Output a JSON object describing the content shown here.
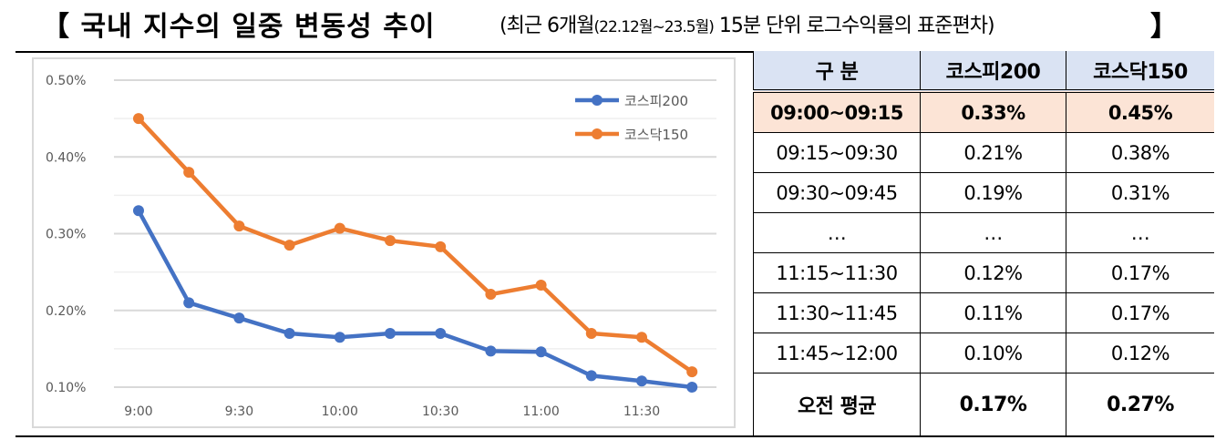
{
  "title": {
    "main": "【 국내 지수의 일중 변동성 추이",
    "sub_open": "(최근 6개월",
    "sub_period": "(22.12월~23.5월)",
    "sub_rest": " 15분 단위 로그수익률의 표준편차)",
    "close": "】"
  },
  "chart_data": {
    "type": "line",
    "title": "",
    "xlabel": "",
    "ylabel": "",
    "x": [
      "9:00",
      "9:15",
      "9:30",
      "9:45",
      "10:00",
      "10:15",
      "10:30",
      "10:45",
      "11:00",
      "11:15",
      "11:30",
      "11:45"
    ],
    "x_tick_labels": [
      "9:00",
      "9:30",
      "10:00",
      "10:30",
      "11:00",
      "11:30"
    ],
    "y_tick_labels": [
      "0.50%",
      "0.40%",
      "0.30%",
      "0.20%",
      "0.10%"
    ],
    "ylim": [
      0.1,
      0.5
    ],
    "y_unit": "%",
    "grid": {
      "major": 0.1,
      "minor": 0.05,
      "horizontal": true
    },
    "legend_position": "upper-right",
    "series": [
      {
        "name": "코스피200",
        "color": "#4472c4",
        "values": [
          0.33,
          0.21,
          0.19,
          0.17,
          0.165,
          0.17,
          0.17,
          0.147,
          0.146,
          0.115,
          0.108,
          0.1
        ]
      },
      {
        "name": "코스닥150",
        "color": "#ed7d31",
        "values": [
          0.45,
          0.38,
          0.31,
          0.285,
          0.307,
          0.291,
          0.283,
          0.221,
          0.233,
          0.17,
          0.165,
          0.12
        ]
      }
    ]
  },
  "table": {
    "headers": [
      "구  분",
      "코스피200",
      "코스닥150"
    ],
    "rows": [
      {
        "period": "09:00~09:15",
        "kospi200": "0.33%",
        "kosdaq150": "0.45%",
        "highlight": true
      },
      {
        "period": "09:15~09:30",
        "kospi200": "0.21%",
        "kosdaq150": "0.38%"
      },
      {
        "period": "09:30~09:45",
        "kospi200": "0.19%",
        "kosdaq150": "0.31%"
      },
      {
        "period": "…",
        "kospi200": "…",
        "kosdaq150": "…"
      },
      {
        "period": "11:15~11:30",
        "kospi200": "0.12%",
        "kosdaq150": "0.17%"
      },
      {
        "period": "11:30~11:45",
        "kospi200": "0.11%",
        "kosdaq150": "0.17%"
      },
      {
        "period": "11:45~12:00",
        "kospi200": "0.10%",
        "kosdaq150": "0.12%"
      }
    ],
    "average": {
      "label": "오전  평균",
      "kospi200": "0.17%",
      "kosdaq150": "0.27%"
    }
  },
  "colors": {
    "header_bg": "#dae3f3",
    "highlight_bg": "#fce4d6",
    "kospi": "#4472c4",
    "kosdaq": "#ed7d31"
  }
}
